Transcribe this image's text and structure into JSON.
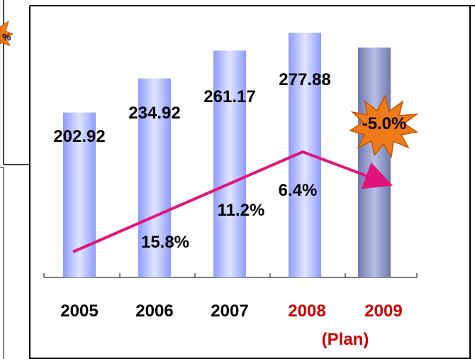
{
  "chart_data": {
    "type": "bar",
    "categories": [
      "2005",
      "2006",
      "2007",
      "2008",
      "2009"
    ],
    "category_sublabels": [
      "",
      "",
      "",
      "",
      "(Plan)"
    ],
    "values": [
      202.92,
      234.92,
      261.17,
      277.88,
      264.0
    ],
    "value_labels": [
      "202.92",
      "234.92",
      "261.17",
      "277.88",
      ""
    ],
    "growth_line": {
      "values": [
        15.8,
        11.2,
        6.4,
        -5.0
      ],
      "labels": [
        "15.8%",
        "11.2%",
        "6.4%",
        "-5.0%"
      ]
    },
    "highlight_label": "-5.0%",
    "partial_badge_label": "%",
    "colors": {
      "bar": "#aab4ff",
      "bar_plan": "#8b93c4",
      "growth_line": "#e0147a",
      "category_highlight": "#cc0000",
      "burst_fill": "#f07a18",
      "burst_edge": "#c45500",
      "text": "#000000"
    }
  }
}
